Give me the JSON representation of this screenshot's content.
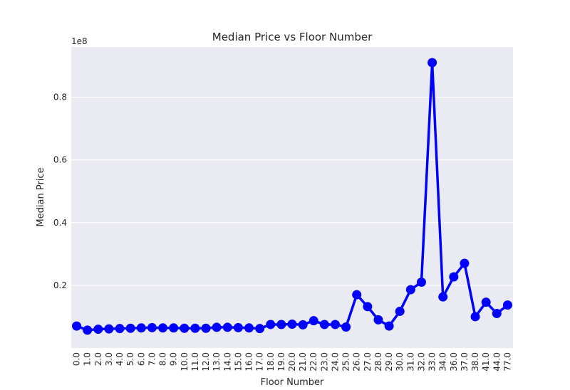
{
  "chart_data": {
    "type": "line",
    "title": "Median Price vs Floor Number",
    "xlabel": "Floor Number",
    "ylabel": "Median Price",
    "y_offset_label": "1e8",
    "y_scale": 100000000,
    "ylim": [
      0.0,
      0.96
    ],
    "y_ticks": [
      0.2,
      0.4,
      0.6,
      0.8
    ],
    "y_tick_labels": [
      "0.2",
      "0.4",
      "0.6",
      "0.8"
    ],
    "grid": "horizontal",
    "background": "#eaeaf2",
    "line_color": "#0000ff",
    "categories": [
      "0.0",
      "1.0",
      "2.0",
      "3.0",
      "4.0",
      "5.0",
      "6.0",
      "7.0",
      "8.0",
      "9.0",
      "10.0",
      "11.0",
      "12.0",
      "13.0",
      "14.0",
      "15.0",
      "16.0",
      "17.0",
      "18.0",
      "19.0",
      "20.0",
      "21.0",
      "22.0",
      "23.0",
      "24.0",
      "25.0",
      "26.0",
      "27.0",
      "28.0",
      "29.0",
      "30.0",
      "31.0",
      "32.0",
      "33.0",
      "34.0",
      "36.0",
      "37.0",
      "38.0",
      "41.0",
      "44.0",
      "77.0"
    ],
    "values": [
      0.07,
      0.057,
      0.06,
      0.061,
      0.062,
      0.063,
      0.064,
      0.065,
      0.064,
      0.064,
      0.063,
      0.063,
      0.063,
      0.066,
      0.066,
      0.065,
      0.064,
      0.062,
      0.075,
      0.075,
      0.076,
      0.074,
      0.087,
      0.075,
      0.075,
      0.067,
      0.17,
      0.132,
      0.09,
      0.07,
      0.117,
      0.186,
      0.21,
      0.91,
      0.163,
      0.227,
      0.27,
      0.1,
      0.146,
      0.11,
      0.137
    ]
  }
}
